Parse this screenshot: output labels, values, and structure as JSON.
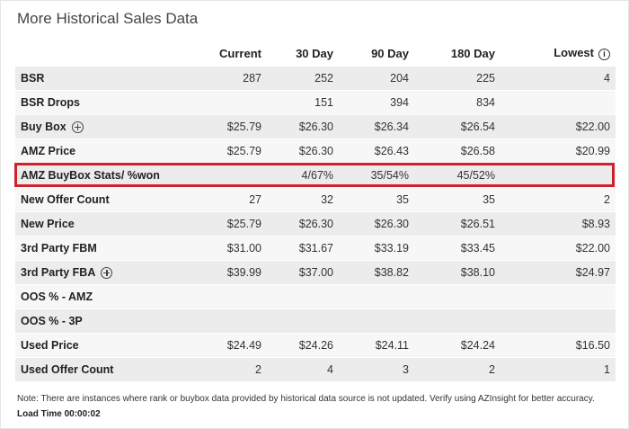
{
  "title": "More Historical Sales Data",
  "headers": [
    "",
    "Current",
    "30 Day",
    "90 Day",
    "180 Day",
    "Lowest"
  ],
  "rows": [
    {
      "label": "BSR",
      "has_plus": false,
      "values": [
        "287",
        "252",
        "204",
        "225",
        "4"
      ]
    },
    {
      "label": "BSR Drops",
      "has_plus": false,
      "values": [
        "",
        "151",
        "394",
        "834",
        ""
      ]
    },
    {
      "label": "Buy Box",
      "has_plus": true,
      "values": [
        "$25.79",
        "$26.30",
        "$26.34",
        "$26.54",
        "$22.00"
      ]
    },
    {
      "label": "AMZ Price",
      "has_plus": false,
      "values": [
        "$25.79",
        "$26.30",
        "$26.43",
        "$26.58",
        "$20.99"
      ]
    },
    {
      "label": "AMZ BuyBox Stats/ %won",
      "has_plus": false,
      "values": [
        "",
        "4/67%",
        "35/54%",
        "45/52%",
        ""
      ]
    },
    {
      "label": "New Offer Count",
      "has_plus": false,
      "values": [
        "27",
        "32",
        "35",
        "35",
        "2"
      ]
    },
    {
      "label": "New Price",
      "has_plus": false,
      "values": [
        "$25.79",
        "$26.30",
        "$26.30",
        "$26.51",
        "$8.93"
      ]
    },
    {
      "label": "3rd Party FBM",
      "has_plus": false,
      "values": [
        "$31.00",
        "$31.67",
        "$33.19",
        "$33.45",
        "$22.00"
      ]
    },
    {
      "label": "3rd Party FBA",
      "has_plus": true,
      "values": [
        "$39.99",
        "$37.00",
        "$38.82",
        "$38.10",
        "$24.97"
      ]
    },
    {
      "label": "OOS % - AMZ",
      "has_plus": false,
      "values": [
        "",
        "",
        "",
        "",
        ""
      ]
    },
    {
      "label": "OOS % - 3P",
      "has_plus": false,
      "values": [
        "",
        "",
        "",
        "",
        ""
      ]
    },
    {
      "label": "Used Price",
      "has_plus": false,
      "values": [
        "$24.49",
        "$24.26",
        "$24.11",
        "$24.24",
        "$16.50"
      ]
    },
    {
      "label": "Used Offer Count",
      "has_plus": false,
      "values": [
        "2",
        "4",
        "3",
        "2",
        "1"
      ]
    }
  ],
  "note": "Note: There are instances where rank or buybox data provided by historical data source is not updated. Verify using AZInsight for better accuracy.",
  "load_time": "Load Time 00:00:02",
  "colors": {
    "highlight_border": "#d0212a",
    "row_odd": "#ececec",
    "row_even": "#f7f7f7"
  }
}
